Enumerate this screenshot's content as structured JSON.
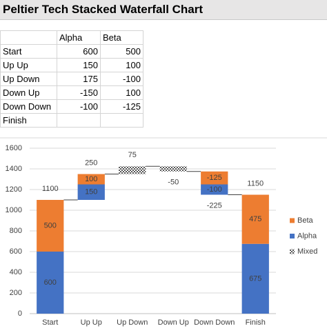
{
  "title": "Peltier Tech Stacked Waterfall Chart",
  "table": {
    "columns": [
      "Alpha",
      "Beta"
    ],
    "rows": [
      {
        "label": "Start",
        "values": [
          600,
          500
        ]
      },
      {
        "label": "Up Up",
        "values": [
          150,
          100
        ]
      },
      {
        "label": "Up Down",
        "values": [
          175,
          -100
        ]
      },
      {
        "label": "Down Up",
        "values": [
          -150,
          100
        ]
      },
      {
        "label": "Down Down",
        "values": [
          -100,
          -125
        ]
      },
      {
        "label": "Finish",
        "values": []
      }
    ]
  },
  "chart_data": {
    "type": "stacked_waterfall",
    "categories": [
      "Start",
      "Up Up",
      "Up Down",
      "Down Up",
      "Down Down",
      "Finish"
    ],
    "series": [
      {
        "name": "Alpha",
        "color": "#4472c4",
        "values": [
          600,
          150,
          175,
          -150,
          -100,
          675
        ]
      },
      {
        "name": "Beta",
        "color": "#ed7d31",
        "values": [
          500,
          100,
          -100,
          100,
          -125,
          475
        ]
      }
    ],
    "mixed_name": "Mixed",
    "totals": [
      1100,
      250,
      75,
      -50,
      -225,
      1150
    ],
    "ylim": [
      0,
      1600
    ],
    "yticks": [
      0,
      200,
      400,
      600,
      800,
      1000,
      1200,
      1400,
      1600
    ],
    "grid": true
  }
}
